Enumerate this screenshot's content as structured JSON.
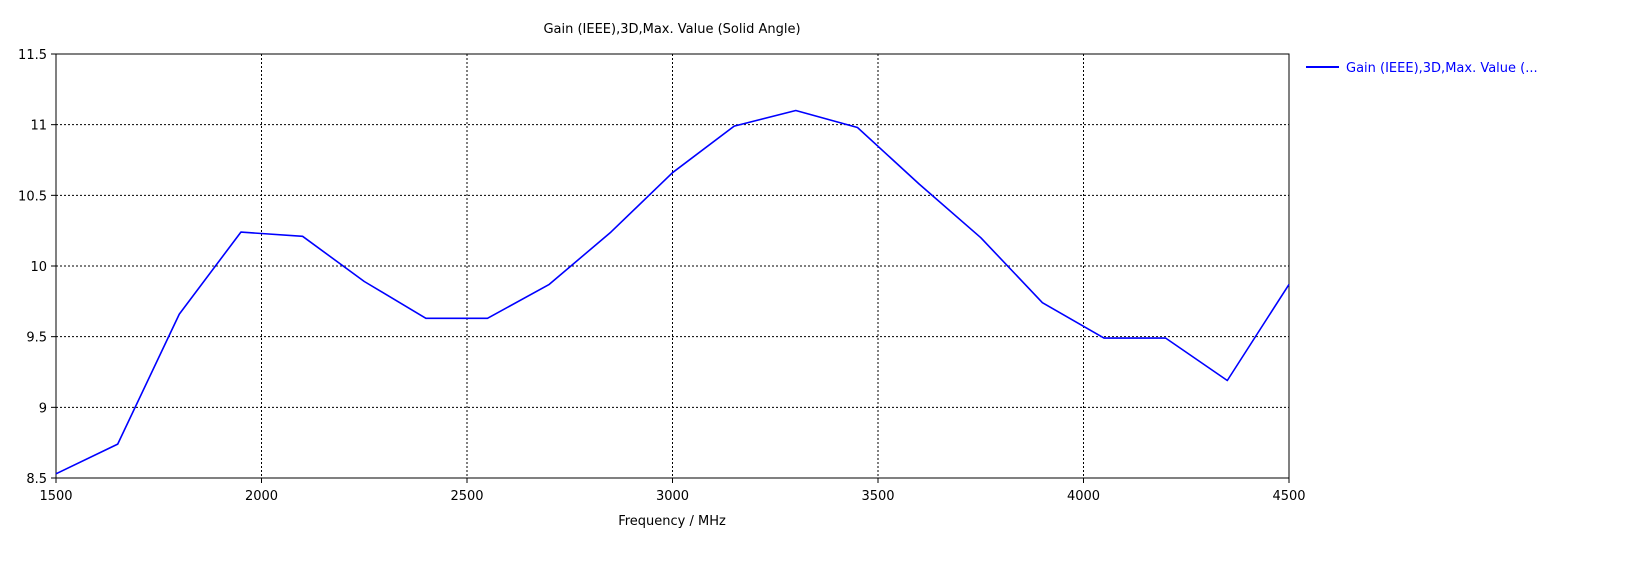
{
  "chart_data": {
    "type": "line",
    "title": "Gain (IEEE),3D,Max. Value (Solid Angle)",
    "xlabel": "Frequency / MHz",
    "ylabel": "",
    "xlim": [
      1500,
      4500
    ],
    "ylim": [
      8.5,
      11.5
    ],
    "xticks": [
      1500,
      2000,
      2500,
      3000,
      3500,
      4000,
      4500
    ],
    "yticks": [
      8.5,
      9,
      9.5,
      10,
      10.5,
      11,
      11.5
    ],
    "xtick_labels": [
      "1500",
      "2000",
      "2500",
      "3000",
      "3500",
      "4000",
      "4500"
    ],
    "ytick_labels": [
      "8.5",
      "9",
      "9.5",
      "10",
      "10.5",
      "11",
      "11.5"
    ],
    "grid": true,
    "legend_position": "top-right-outside",
    "series": [
      {
        "name": "Gain (IEEE),3D,Max. Value (...",
        "color": "#0000ff",
        "x": [
          1500,
          1650,
          1800,
          1950,
          2100,
          2250,
          2400,
          2550,
          2700,
          2850,
          3000,
          3150,
          3300,
          3450,
          3600,
          3750,
          3900,
          4050,
          4200,
          4350,
          4500
        ],
        "y": [
          8.53,
          8.74,
          9.66,
          10.24,
          10.21,
          9.89,
          9.63,
          9.63,
          9.87,
          10.24,
          10.66,
          10.99,
          11.1,
          10.98,
          10.58,
          10.2,
          9.74,
          9.49,
          9.49,
          9.19,
          9.87
        ]
      }
    ]
  }
}
